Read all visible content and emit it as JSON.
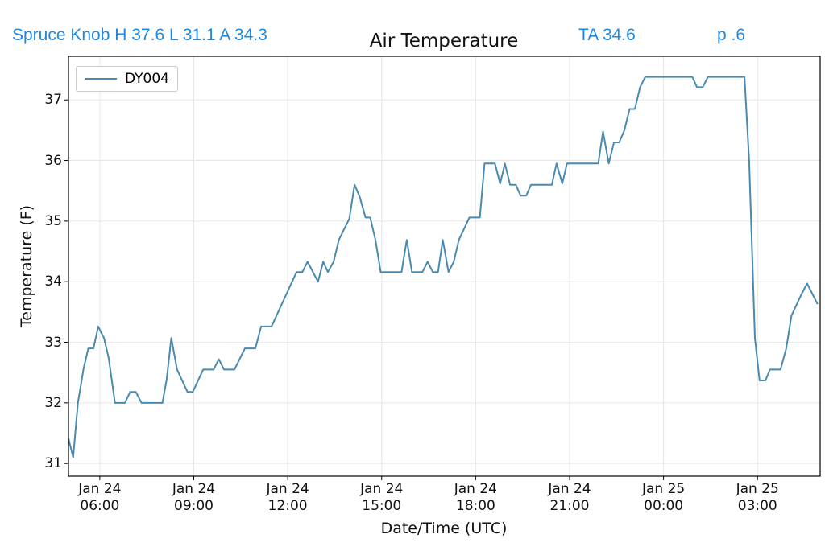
{
  "header": {
    "station": "Spruce Knob H 37.6 L 31.1 A 34.3",
    "average": "TA 34.6",
    "page": "p .6"
  },
  "chart_data": {
    "type": "line",
    "title": "Air Temperature",
    "x_label": "Date/Time (UTC)",
    "y_label": "Temperature (F)",
    "xlim": [
      "Jan 24 05:00",
      "Jan 25 05:00"
    ],
    "xticks": [
      "Jan 24 06:00",
      "Jan 24 09:00",
      "Jan 24 12:00",
      "Jan 24 15:00",
      "Jan 24 18:00",
      "Jan 24 21:00",
      "Jan 25 00:00",
      "Jan 25 03:00"
    ],
    "ylim": [
      30.79,
      37.72
    ],
    "yticks": [
      31,
      32,
      33,
      34,
      35,
      36,
      37
    ],
    "grid": true,
    "legend": "upper left",
    "x": [
      "Jan 24 05:00",
      "Jan 24 05:09",
      "Jan 24 05:18",
      "Jan 24 05:29",
      "Jan 24 05:38",
      "Jan 24 05:48",
      "Jan 24 05:57",
      "Jan 24 06:08",
      "Jan 24 06:17",
      "Jan 24 06:29",
      "Jan 24 06:48",
      "Jan 24 06:58",
      "Jan 24 07:09",
      "Jan 24 07:20",
      "Jan 24 08:00",
      "Jan 24 08:08",
      "Jan 24 08:17",
      "Jan 24 08:28",
      "Jan 24 08:48",
      "Jan 24 08:58",
      "Jan 24 09:18",
      "Jan 24 09:38",
      "Jan 24 09:48",
      "Jan 24 09:58",
      "Jan 24 10:18",
      "Jan 24 10:38",
      "Jan 24 10:58",
      "Jan 24 11:09",
      "Jan 24 11:29",
      "Jan 24 12:17",
      "Jan 24 12:28",
      "Jan 24 12:38",
      "Jan 24 12:58",
      "Jan 24 13:08",
      "Jan 24 13:17",
      "Jan 24 13:28",
      "Jan 24 13:38",
      "Jan 24 13:58",
      "Jan 24 14:08",
      "Jan 24 14:18",
      "Jan 24 14:29",
      "Jan 24 14:38",
      "Jan 24 14:48",
      "Jan 24 14:58",
      "Jan 24 15:38",
      "Jan 24 15:48",
      "Jan 24 15:58",
      "Jan 24 16:18",
      "Jan 24 16:28",
      "Jan 24 16:38",
      "Jan 24 16:48",
      "Jan 24 16:57",
      "Jan 24 17:08",
      "Jan 24 17:18",
      "Jan 24 17:28",
      "Jan 24 17:48",
      "Jan 24 18:08",
      "Jan 24 18:17",
      "Jan 24 18:37",
      "Jan 24 18:47",
      "Jan 24 18:56",
      "Jan 24 19:06",
      "Jan 24 19:17",
      "Jan 24 19:26",
      "Jan 24 19:37",
      "Jan 24 19:46",
      "Jan 24 20:26",
      "Jan 24 20:35",
      "Jan 24 20:46",
      "Jan 24 20:55",
      "Jan 24 21:55",
      "Jan 24 22:04",
      "Jan 24 22:15",
      "Jan 24 22:25",
      "Jan 24 22:35",
      "Jan 24 22:45",
      "Jan 24 22:55",
      "Jan 24 23:05",
      "Jan 24 23:15",
      "Jan 24 23:25",
      "Jan 25 00:55",
      "Jan 25 01:04",
      "Jan 25 01:15",
      "Jan 25 01:25",
      "Jan 25 02:35",
      "Jan 25 02:44",
      "Jan 25 02:55",
      "Jan 25 03:04",
      "Jan 25 03:15",
      "Jan 25 03:24",
      "Jan 25 03:44",
      "Jan 25 03:55",
      "Jan 25 04:05",
      "Jan 25 04:24",
      "Jan 25 04:35",
      "Jan 25 04:55"
    ],
    "series": [
      {
        "name": "DY004",
        "color": "#4a8ab0",
        "values": [
          31.41,
          31.1,
          32.0,
          32.57,
          32.9,
          32.9,
          33.26,
          33.07,
          32.74,
          32.0,
          32.0,
          32.18,
          32.18,
          32.0,
          32.0,
          32.38,
          33.07,
          32.55,
          32.18,
          32.18,
          32.55,
          32.55,
          32.72,
          32.55,
          32.55,
          32.9,
          32.9,
          33.26,
          33.26,
          34.16,
          34.16,
          34.33,
          34.0,
          34.33,
          34.16,
          34.33,
          34.69,
          35.04,
          35.6,
          35.4,
          35.06,
          35.06,
          34.69,
          34.16,
          34.16,
          34.69,
          34.16,
          34.16,
          34.33,
          34.16,
          34.16,
          34.69,
          34.16,
          34.33,
          34.69,
          35.06,
          35.06,
          35.95,
          35.95,
          35.62,
          35.95,
          35.6,
          35.6,
          35.42,
          35.42,
          35.6,
          35.6,
          35.95,
          35.62,
          35.95,
          35.95,
          36.48,
          35.95,
          36.3,
          36.3,
          36.5,
          36.85,
          36.85,
          37.21,
          37.38,
          37.38,
          37.21,
          37.21,
          37.38,
          37.38,
          35.99,
          33.07,
          32.37,
          32.37,
          32.55,
          32.55,
          32.9,
          33.44,
          33.79,
          33.97,
          33.63
        ]
      }
    ]
  }
}
